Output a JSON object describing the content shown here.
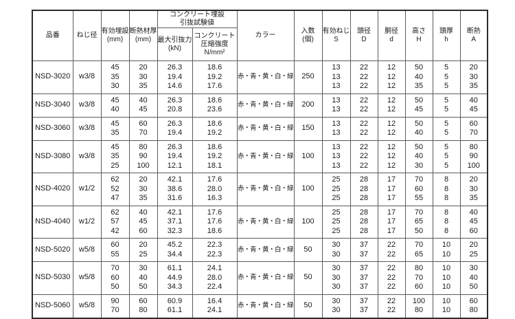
{
  "table": {
    "headers": {
      "code": "品番",
      "screw": "ねじ径",
      "embed_l1": "有効埋設",
      "embed_l2": "(mm)",
      "thick_l1": "断熱材厚",
      "thick_l2": "(mm)",
      "test_group_l1": "コンクリート埋設",
      "test_group_l2": "引抜試験値",
      "pull_l1": "最大引抜力",
      "pull_l2": "(kN)",
      "comp_l1": "コンクリート",
      "comp_l2": "圧縮強度",
      "comp_l3": "N/mm²",
      "color": "カラー",
      "qty_l1": "入数",
      "qty_l2": "(個)",
      "s_l1": "有効ねじ",
      "s_l2": "S",
      "head_d_l1": "頭径",
      "head_d_l2": "D",
      "body_d_l1": "胴径",
      "body_d_l2": "d",
      "height_l1": "高さ",
      "height_l2": "H",
      "head_t_l1": "頭厚",
      "head_t_l2": "h",
      "insul_l1": "断熱",
      "insul_l2": "A"
    },
    "rows": [
      {
        "code": "NSD-3020",
        "screw": "w3/8",
        "embed": [
          "45",
          "35",
          "30"
        ],
        "thick": [
          "20",
          "30",
          "35"
        ],
        "pull": [
          "26.3",
          "19.4",
          "14.6"
        ],
        "comp": [
          "18.6",
          "19.2",
          "17.6"
        ],
        "color": "赤・青・黄・白・緑",
        "qty": "250",
        "s": [
          "13",
          "13",
          "13"
        ],
        "head_d": [
          "22",
          "22",
          "22"
        ],
        "body_d": [
          "12",
          "12",
          "12"
        ],
        "height": [
          "50",
          "40",
          "35"
        ],
        "head_t": [
          "5",
          "5",
          "5"
        ],
        "insul": [
          "20",
          "30",
          "35"
        ]
      },
      {
        "code": "NSD-3040",
        "screw": "w3/8",
        "embed": [
          "45",
          "40"
        ],
        "thick": [
          "40",
          "45"
        ],
        "pull": [
          "26.3",
          "20.8"
        ],
        "comp": [
          "18.6",
          "23.6"
        ],
        "color": "赤・青・黄・白・緑",
        "qty": "200",
        "s": [
          "13",
          "13"
        ],
        "head_d": [
          "22",
          "22"
        ],
        "body_d": [
          "12",
          "12"
        ],
        "height": [
          "50",
          "45"
        ],
        "head_t": [
          "5",
          "5"
        ],
        "insul": [
          "40",
          "45"
        ]
      },
      {
        "code": "NSD-3060",
        "screw": "w3/8",
        "embed": [
          "45",
          "35"
        ],
        "thick": [
          "60",
          "70"
        ],
        "pull": [
          "26.3",
          "19.4"
        ],
        "comp": [
          "18.6",
          "19.2"
        ],
        "color": "赤・青・黄・白・緑",
        "qty": "150",
        "s": [
          "13",
          "13"
        ],
        "head_d": [
          "22",
          "22"
        ],
        "body_d": [
          "12",
          "12"
        ],
        "height": [
          "50",
          "40"
        ],
        "head_t": [
          "5",
          "5"
        ],
        "insul": [
          "60",
          "70"
        ]
      },
      {
        "code": "NSD-3080",
        "screw": "w3/8",
        "embed": [
          "45",
          "35",
          "25"
        ],
        "thick": [
          "80",
          "90",
          "100"
        ],
        "pull": [
          "26.3",
          "19.4",
          "12.1"
        ],
        "comp": [
          "18.6",
          "19.2",
          "18.1"
        ],
        "color": "赤・青・黄・白・緑",
        "qty": "100",
        "s": [
          "13",
          "13",
          "13"
        ],
        "head_d": [
          "22",
          "22",
          "22"
        ],
        "body_d": [
          "12",
          "12",
          "12"
        ],
        "height": [
          "50",
          "40",
          "30"
        ],
        "head_t": [
          "5",
          "5",
          "5"
        ],
        "insul": [
          "80",
          "90",
          "100"
        ]
      },
      {
        "code": "NSD-4020",
        "screw": "w1/2",
        "embed": [
          "62",
          "52",
          "47"
        ],
        "thick": [
          "20",
          "30",
          "35"
        ],
        "pull": [
          "42.1",
          "38.6",
          "31.6"
        ],
        "comp": [
          "17.6",
          "28.0",
          "16.3"
        ],
        "color": "赤・青・黄・白・緑",
        "qty": "100",
        "s": [
          "25",
          "25",
          "25"
        ],
        "head_d": [
          "28",
          "28",
          "28"
        ],
        "body_d": [
          "17",
          "17",
          "17"
        ],
        "height": [
          "70",
          "60",
          "55"
        ],
        "head_t": [
          "8",
          "8",
          "8"
        ],
        "insul": [
          "20",
          "30",
          "35"
        ]
      },
      {
        "code": "NSD-4040",
        "screw": "w1/2",
        "embed": [
          "62",
          "57",
          "42"
        ],
        "thick": [
          "40",
          "45",
          "60"
        ],
        "pull": [
          "42.1",
          "37.1",
          "32.3"
        ],
        "comp": [
          "17.6",
          "17.6",
          "18.6"
        ],
        "color": "赤・青・黄・白・緑",
        "qty": "100",
        "s": [
          "25",
          "25",
          "25"
        ],
        "head_d": [
          "28",
          "28",
          "28"
        ],
        "body_d": [
          "17",
          "17",
          "17"
        ],
        "height": [
          "70",
          "65",
          "50"
        ],
        "head_t": [
          "8",
          "8",
          "8"
        ],
        "insul": [
          "40",
          "45",
          "60"
        ]
      },
      {
        "code": "NSD-5020",
        "screw": "w5/8",
        "embed": [
          "60",
          "55"
        ],
        "thick": [
          "20",
          "25"
        ],
        "pull": [
          "45.2",
          "34.4"
        ],
        "comp": [
          "22.3",
          "22.3"
        ],
        "color": "赤・青・黄・白・緑",
        "qty": "50",
        "s": [
          "30",
          "30"
        ],
        "head_d": [
          "37",
          "37"
        ],
        "body_d": [
          "22",
          "22"
        ],
        "height": [
          "70",
          "65"
        ],
        "head_t": [
          "10",
          "10"
        ],
        "insul": [
          "20",
          "25"
        ]
      },
      {
        "code": "NSD-5030",
        "screw": "w5/8",
        "embed": [
          "70",
          "60",
          "50"
        ],
        "thick": [
          "30",
          "40",
          "50"
        ],
        "pull": [
          "61.1",
          "44.9",
          "34.3"
        ],
        "comp": [
          "24.1",
          "28.0",
          "22.4"
        ],
        "color": "赤・青・黄・白・緑",
        "qty": "50",
        "s": [
          "30",
          "30",
          "30"
        ],
        "head_d": [
          "37",
          "37",
          "37"
        ],
        "body_d": [
          "22",
          "22",
          "22"
        ],
        "height": [
          "80",
          "70",
          "60"
        ],
        "head_t": [
          "10",
          "10",
          "10"
        ],
        "insul": [
          "30",
          "40",
          "50"
        ]
      },
      {
        "code": "NSD-5060",
        "screw": "w5/8",
        "embed": [
          "90",
          "70"
        ],
        "thick": [
          "60",
          "80"
        ],
        "pull": [
          "60.9",
          "61.1"
        ],
        "comp": [
          "16.4",
          "24.1"
        ],
        "color": "赤・青・黄・白・緑",
        "qty": "50",
        "s": [
          "30",
          "30"
        ],
        "head_d": [
          "37",
          "37"
        ],
        "body_d": [
          "22",
          "22"
        ],
        "height": [
          "100",
          "80"
        ],
        "head_t": [
          "10",
          "10"
        ],
        "insul": [
          "60",
          "80"
        ]
      }
    ]
  }
}
